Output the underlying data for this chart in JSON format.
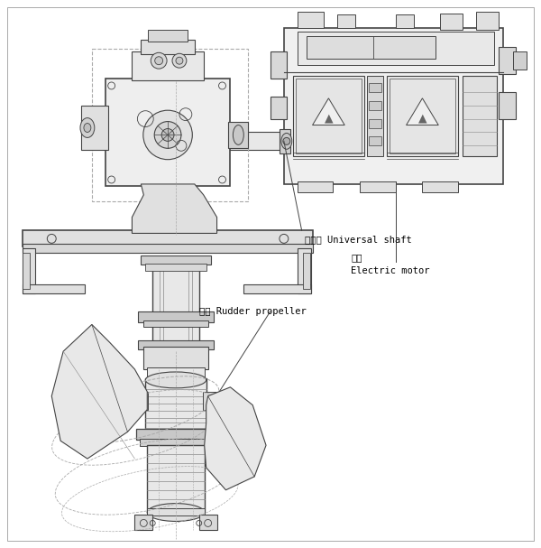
{
  "bg_color": "#ffffff",
  "line_color": "#444444",
  "light_line_color": "#888888",
  "dashed_color": "#aaaaaa",
  "labels": {
    "universal_shaft_cn": "万向轴",
    "universal_shaft_en": "Universal shaft",
    "electric_motor_cn": "电机",
    "electric_motor_en": "Electric motor",
    "rudder_cn": "舵桨",
    "rudder_en": "Rudder propeller"
  },
  "figsize": [
    6.0,
    6.07
  ],
  "dpi": 100
}
